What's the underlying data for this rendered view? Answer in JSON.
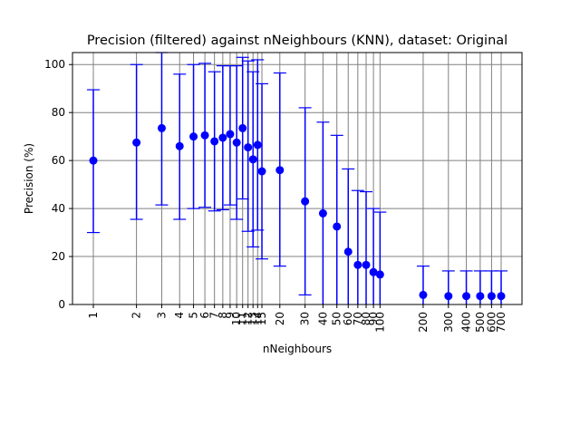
{
  "chart_data": {
    "type": "scatter",
    "title": "Precision (filtered) against nNeighbours (KNN), dataset: Original",
    "xlabel": "nNeighbours",
    "ylabel": "Precision (%)",
    "xscale": "log",
    "ylim": [
      0,
      105
    ],
    "grid": true,
    "colors": {
      "series": "#0000ff",
      "grid": "#808080"
    },
    "x": [
      1,
      2,
      3,
      4,
      5,
      6,
      7,
      8,
      9,
      10,
      11,
      12,
      13,
      14,
      15,
      20,
      30,
      40,
      50,
      60,
      70,
      80,
      90,
      100,
      200,
      300,
      400,
      500,
      600,
      700
    ],
    "x_tick_labels": [
      "1",
      "2",
      "3",
      "4",
      "5",
      "6",
      "7",
      "8",
      "9",
      "10",
      "11",
      "12",
      "13",
      "14",
      "15",
      "20",
      "30",
      "40",
      "50",
      "60",
      "70",
      "80",
      "90",
      "100",
      "200",
      "300",
      "400",
      "500",
      "600",
      "700"
    ],
    "y_ticks": [
      0,
      20,
      40,
      60,
      80,
      100
    ],
    "y_tick_labels": [
      "0",
      "20",
      "40",
      "60",
      "80",
      "100"
    ],
    "series": [
      {
        "values": [
          60,
          67.5,
          73.5,
          66,
          70,
          70.5,
          68,
          69.5,
          71,
          67.5,
          73.5,
          65.5,
          60.5,
          66.5,
          55.5,
          56,
          43,
          38,
          32.5,
          22,
          16.5,
          16.5,
          13.5,
          12.5,
          4,
          3.5,
          3.5,
          3.5,
          3.5,
          3.5
        ],
        "err_low": [
          30,
          35.5,
          41.5,
          35.5,
          40,
          40.5,
          39,
          39.5,
          41.5,
          35.5,
          44,
          30.5,
          24,
          31,
          19,
          16,
          4,
          0,
          0,
          0,
          0,
          0,
          0,
          0,
          0,
          0,
          0,
          0,
          0,
          0
        ],
        "err_high": [
          89.5,
          100,
          105,
          96,
          100,
          100.5,
          97,
          99.5,
          99.5,
          99.5,
          103,
          101.5,
          97,
          102,
          92,
          96.5,
          82,
          76,
          70.5,
          56.5,
          47.5,
          47,
          40,
          38.5,
          16,
          14,
          14,
          14,
          14,
          14
        ]
      }
    ]
  }
}
